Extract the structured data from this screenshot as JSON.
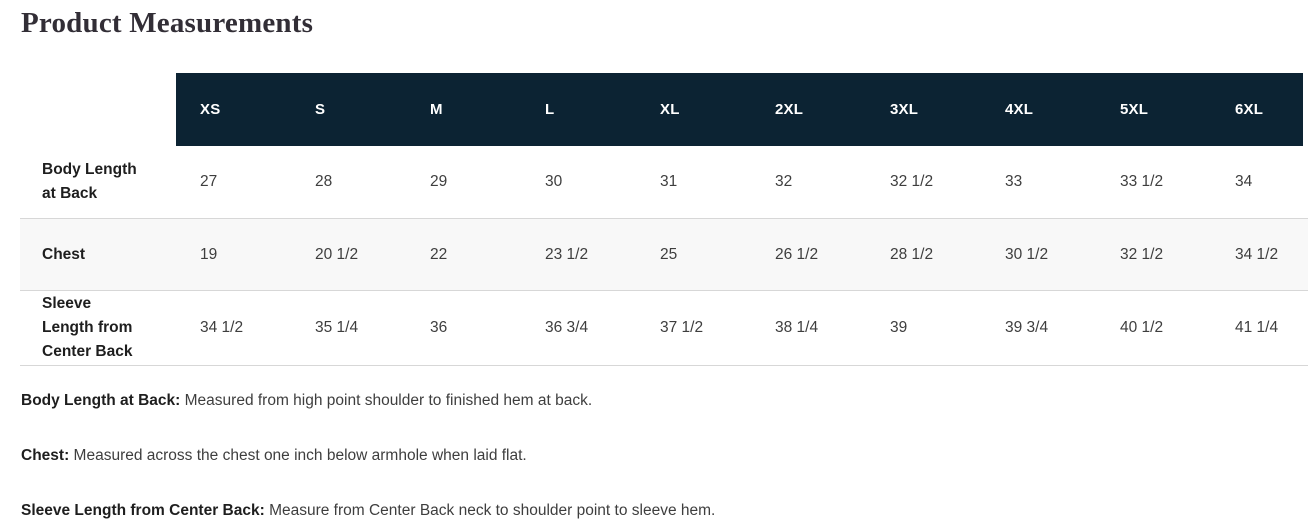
{
  "page_title": "Product Measurements",
  "table": {
    "size_headers": [
      "XS",
      "S",
      "M",
      "L",
      "XL",
      "2XL",
      "3XL",
      "4XL",
      "5XL",
      "6XL"
    ],
    "rows": [
      {
        "label": "Body Length\nat Back",
        "values": [
          "27",
          "28",
          "29",
          "30",
          "31",
          "32",
          "32 1/2",
          "33",
          "33 1/2",
          "34"
        ]
      },
      {
        "label": "Chest",
        "values": [
          "19",
          "20 1/2",
          "22",
          "23 1/2",
          "25",
          "26 1/2",
          "28 1/2",
          "30 1/2",
          "32 1/2",
          "34 1/2"
        ]
      },
      {
        "label": "Sleeve\nLength from\nCenter Back",
        "values": [
          "34 1/2",
          "35 1/4",
          "36",
          "36 3/4",
          "37 1/2",
          "38 1/4",
          "39",
          "39 3/4",
          "40 1/2",
          "41 1/4"
        ]
      }
    ]
  },
  "footnotes": [
    {
      "term": "Body Length at Back:",
      "definition": " Measured from high point shoulder to finished hem at back."
    },
    {
      "term": "Chest:",
      "definition": " Measured across the chest one inch below armhole when laid flat."
    },
    {
      "term": "Sleeve Length from Center Back:",
      "definition": " Measure from Center Back neck to shoulder point to sleeve hem."
    }
  ],
  "colors": {
    "header_bg": "#0c2333",
    "header_text": "#ffffff",
    "stripe_bg": "#f8f8f8",
    "border": "#d7d7d7",
    "title_text": "#322e36"
  }
}
